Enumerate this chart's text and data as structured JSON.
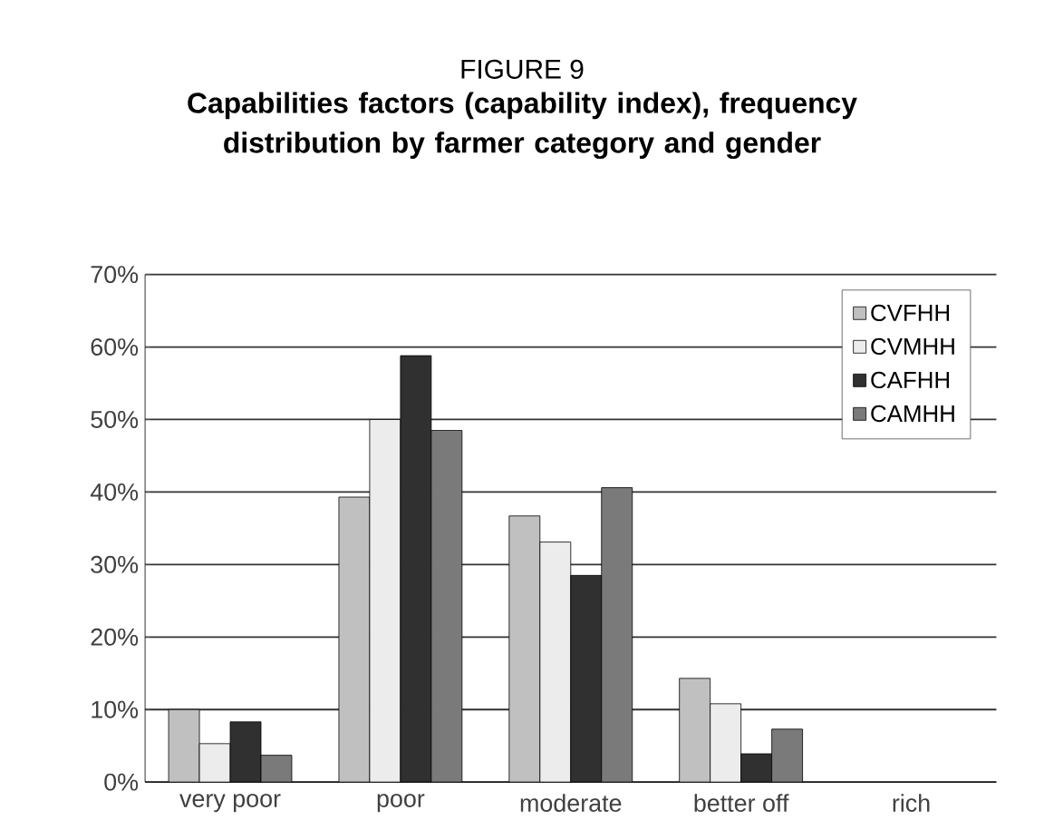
{
  "chart_data": {
    "type": "bar",
    "title": "FIGURE 9",
    "subtitle": "Capabilities factors (capability index), frequency distribution by farmer category and gender",
    "categories": [
      "very poor",
      "poor",
      "moderate",
      "better off",
      "rich"
    ],
    "series": [
      {
        "name": "CVFHH",
        "color": "#c0c0c0",
        "values": [
          10.0,
          39.3,
          36.7,
          14.3,
          null
        ]
      },
      {
        "name": "CVMHH",
        "color": "#ececec",
        "values": [
          5.3,
          50.0,
          33.1,
          10.8,
          null
        ]
      },
      {
        "name": "CAFHH",
        "color": "#303030",
        "values": [
          8.3,
          58.8,
          28.5,
          3.9,
          null
        ]
      },
      {
        "name": "CAMHH",
        "color": "#7a7a7a",
        "values": [
          3.7,
          48.5,
          40.6,
          7.3,
          null
        ]
      }
    ],
    "ylim": [
      0,
      70
    ],
    "yticks": [
      {
        "value": 0,
        "label": "0%"
      },
      {
        "value": 10,
        "label": "10%"
      },
      {
        "value": 20,
        "label": "20%"
      },
      {
        "value": 30,
        "label": "30%"
      },
      {
        "value": 40,
        "label": "40%"
      },
      {
        "value": 50,
        "label": "50%"
      },
      {
        "value": 60,
        "label": "60%"
      },
      {
        "value": 70,
        "label": "70%"
      }
    ],
    "grid": "y",
    "legend": "top right"
  }
}
